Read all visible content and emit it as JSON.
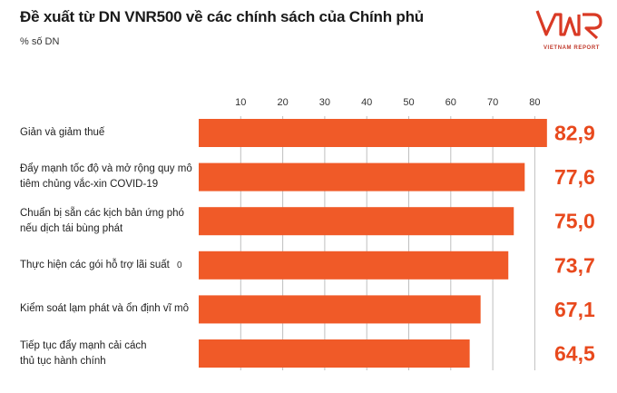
{
  "header": {
    "title": "Đề xuất từ DN VNR500 về các chính sách của Chính phủ",
    "subtitle": "% số DN",
    "stray_tick": "0"
  },
  "logo": {
    "mark": "VNR",
    "tagline": "VIETNAM REPORT"
  },
  "colors": {
    "bar": "#f05a28",
    "value_text": "#e8491d",
    "grid": "#bfbfbf"
  },
  "chart_data": {
    "type": "bar",
    "orientation": "horizontal",
    "title": "Đề xuất từ DN VNR500 về các chính sách của Chính phủ",
    "unit": "% số DN",
    "x_axis_position": "top",
    "xlim": [
      0,
      85
    ],
    "xticks": [
      10,
      20,
      30,
      40,
      50,
      60,
      70,
      80
    ],
    "grid": true,
    "categories": [
      [
        "Giản và giảm thuế"
      ],
      [
        "Đẩy mạnh tốc độ và mở rộng quy mô",
        "tiêm chủng vắc-xin COVID-19"
      ],
      [
        "Chuẩn bị sẵn các kịch bản ứng phó",
        "nếu dịch tái bùng phát"
      ],
      [
        "Thực hiện các gói hỗ trợ lãi suất"
      ],
      [
        "Kiểm soát lạm phát và ổn định vĩ mô"
      ],
      [
        "Tiếp tục đẩy mạnh cải cách",
        "thủ tục hành chính"
      ]
    ],
    "values": [
      82.9,
      77.6,
      75.0,
      73.7,
      67.1,
      64.5
    ],
    "value_labels": [
      "82,9",
      "77,6",
      "75,0",
      "73,7",
      "67,1",
      "64,5"
    ]
  }
}
